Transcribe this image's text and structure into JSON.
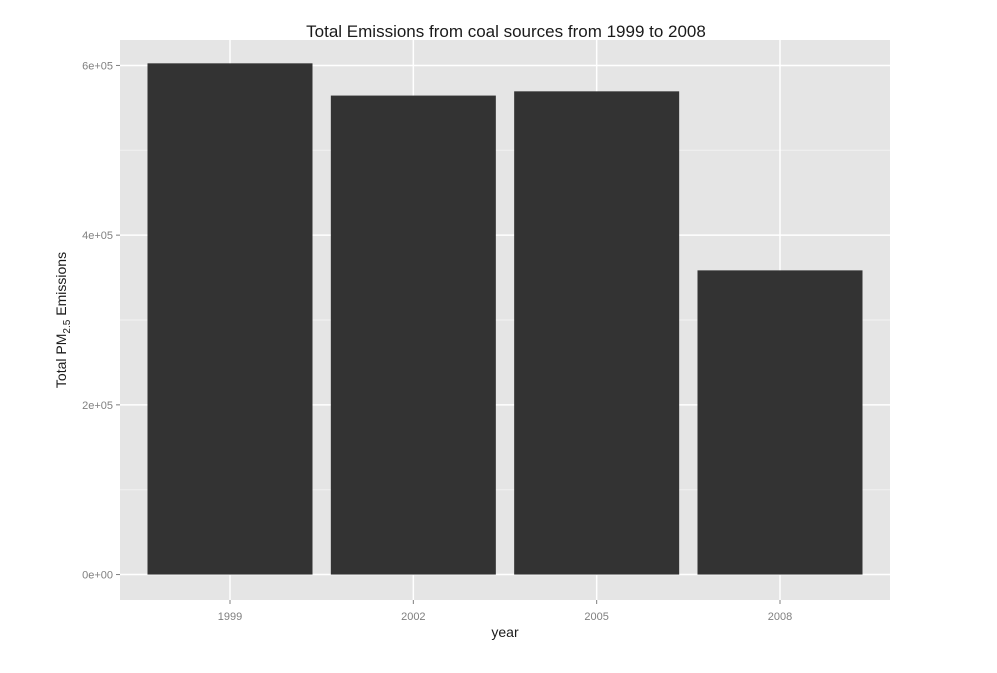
{
  "chart_data": {
    "type": "bar",
    "title": "Total Emissions from coal sources from 1999 to 2008",
    "xlabel": "year",
    "ylabel": "Total PM",
    "ylabel_sub": "2.5",
    "ylabel_suffix": "Emissions",
    "categories": [
      "1999",
      "2002",
      "2005",
      "2008"
    ],
    "values": [
      602500,
      564500,
      569500,
      358500
    ],
    "ylim": [
      -30000,
      630000
    ],
    "yticks": [
      0,
      200000,
      400000,
      600000
    ],
    "ytick_labels": [
      "0e+00",
      "2e+05",
      "4e+05",
      "6e+05"
    ],
    "grid": true,
    "colors": {
      "bar": "#333333",
      "panel": "#e5e5e5",
      "grid_major": "#ffffff",
      "grid_minor": "#f2f2f2"
    }
  }
}
